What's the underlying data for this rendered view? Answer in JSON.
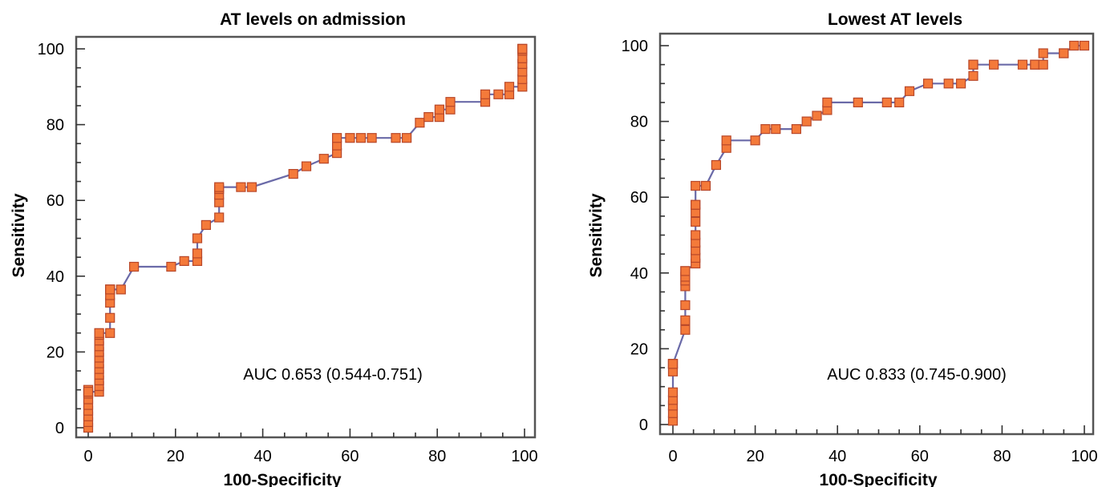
{
  "colors": {
    "marker_fill": "#f47a3a",
    "marker_edge": "#b8482a",
    "line": "#6a6aa8",
    "frame": "#555555"
  },
  "chart_data": [
    {
      "type": "line",
      "title": "AT levels on admission",
      "xlabel": "100-Specificity",
      "ylabel": "Sensitivity",
      "xlim": [
        0,
        100
      ],
      "ylim": [
        0,
        100
      ],
      "xticks": [
        "0",
        "20",
        "40",
        "60",
        "80",
        "100"
      ],
      "yticks": [
        "0",
        "20",
        "40",
        "60",
        "80",
        "100"
      ],
      "annotation": "AUC 0.653 (0.544-0.751)",
      "series": [
        {
          "x": [
            0,
            0,
            0,
            0,
            0,
            0,
            0,
            0,
            0,
            2.5,
            2.5,
            2.5,
            2.5,
            2.5,
            2.5,
            2.5,
            2.5,
            2.5,
            2.5,
            2.5,
            2.5,
            5,
            5,
            5,
            5,
            5,
            5,
            5,
            7.5,
            10.5,
            19,
            22,
            25,
            25,
            25,
            27,
            30,
            30,
            30,
            30,
            30,
            35,
            37.5,
            47,
            50,
            54,
            57,
            57,
            57,
            60,
            62.5,
            65,
            70.5,
            73,
            76,
            78,
            80.5,
            80.5,
            83,
            83,
            91,
            91,
            94,
            96.5,
            96.5,
            99.5,
            99.5,
            99.5,
            99.5,
            99.5,
            99.5,
            99.5,
            99.5,
            99.5,
            99.5
          ],
          "y": [
            0,
            1.5,
            3,
            4.5,
            6,
            7.5,
            9,
            10,
            9.5,
            9.5,
            11,
            12.5,
            14,
            15.5,
            17,
            18.5,
            20,
            21.5,
            23,
            24.5,
            25,
            25,
            29,
            33,
            35,
            36.5,
            36.5,
            36.5,
            36.5,
            42.5,
            42.5,
            44,
            44,
            46,
            50,
            53.5,
            55.5,
            59.5,
            61.5,
            63,
            63.5,
            63.5,
            63.5,
            67,
            69,
            71,
            72.5,
            74.5,
            76.5,
            76.5,
            76.5,
            76.5,
            76.5,
            76.5,
            80.5,
            82,
            82,
            84,
            84,
            86,
            86,
            88,
            88,
            88,
            90,
            90,
            92,
            94,
            96,
            97.5,
            99.5,
            100,
            100,
            100,
            100
          ]
        }
      ]
    },
    {
      "type": "line",
      "title": "Lowest AT levels",
      "xlabel": "100-Specificity",
      "ylabel": "Sensitivity",
      "xlim": [
        0,
        100
      ],
      "ylim": [
        0,
        100
      ],
      "xticks": [
        "0",
        "20",
        "40",
        "60",
        "80",
        "100"
      ],
      "yticks": [
        "0",
        "20",
        "40",
        "60",
        "80",
        "100"
      ],
      "annotation": "AUC 0.833 (0.745-0.900)",
      "series": [
        {
          "x": [
            0,
            0,
            0,
            0,
            0,
            0,
            0,
            0,
            0,
            0,
            3,
            3,
            3,
            3,
            3,
            3,
            3,
            3,
            5.5,
            5.5,
            5.5,
            5.5,
            5.5,
            5.5,
            5.5,
            5.5,
            5.5,
            5.5,
            8,
            10.5,
            13,
            13,
            20,
            22.5,
            25,
            30,
            32.5,
            35,
            37.5,
            37.5,
            45,
            52,
            55,
            57.5,
            62,
            67,
            70,
            73,
            73,
            73,
            78,
            85,
            88,
            88,
            90,
            90,
            95,
            95,
            97.5,
            100
          ],
          "y": [
            1,
            3,
            5,
            6.5,
            8.5,
            14,
            16,
            16,
            16,
            16,
            25,
            27.5,
            31.5,
            36.5,
            38,
            39,
            40.5,
            40.5,
            42.5,
            44,
            46,
            48,
            50,
            53.5,
            56,
            58,
            58,
            63,
            63,
            68.5,
            73,
            75,
            75,
            78,
            78,
            78,
            80,
            81.5,
            83,
            85,
            85,
            85,
            85,
            88,
            90,
            90,
            90,
            92,
            95,
            95,
            95,
            95,
            95,
            95,
            95,
            98,
            98,
            98,
            100,
            100
          ]
        }
      ]
    }
  ]
}
